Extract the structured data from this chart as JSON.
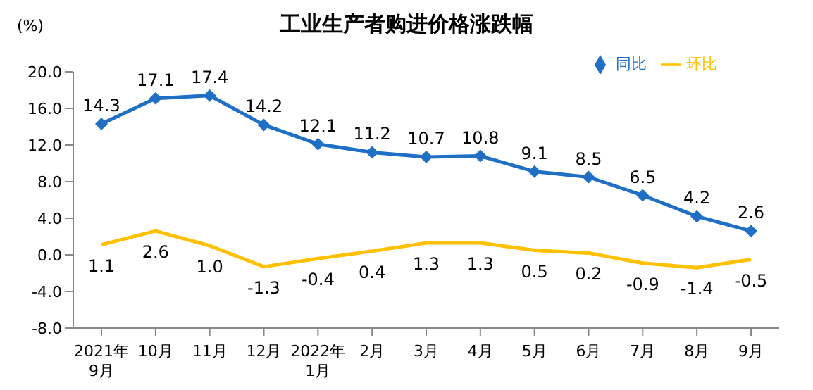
{
  "chart_data": {
    "type": "line",
    "title": "工业生产者购进价格涨跌幅",
    "ylabel": "(%)",
    "categories": [
      "2021年\n9月",
      "10月",
      "11月",
      "12月",
      "2022年\n1月",
      "2月",
      "3月",
      "4月",
      "5月",
      "6月",
      "7月",
      "8月",
      "9月"
    ],
    "series": [
      {
        "name": "同比",
        "color": "#1f6fc5",
        "marker": "diamond",
        "values": [
          14.3,
          17.1,
          17.4,
          14.2,
          12.1,
          11.2,
          10.7,
          10.8,
          9.1,
          8.5,
          6.5,
          4.2,
          2.6
        ],
        "value_labels": [
          "14.3",
          "17.1",
          "17.4",
          "14.2",
          "12.1",
          "11.2",
          "10.7",
          "10.8",
          "9.1",
          "8.5",
          "6.5",
          "4.2",
          "2.6"
        ]
      },
      {
        "name": "环比",
        "color": "#ffc000",
        "marker": "none",
        "values": [
          1.1,
          2.6,
          1.0,
          -1.3,
          -0.4,
          0.4,
          1.3,
          1.3,
          0.5,
          0.2,
          -0.9,
          -1.4,
          -0.5
        ],
        "value_labels": [
          "1.1",
          "2.6",
          "1.0",
          "-1.3",
          "-0.4",
          "0.4",
          "1.3",
          "1.3",
          "0.5",
          "0.2",
          "-0.9",
          "-1.4",
          "-0.5"
        ]
      }
    ],
    "ylim": [
      -8,
      20
    ],
    "yticks": [
      {
        "value": -8,
        "label": "-8.0"
      },
      {
        "value": -4,
        "label": "-4.0"
      },
      {
        "value": 0,
        "label": "0.0"
      },
      {
        "value": 4,
        "label": "4.0"
      },
      {
        "value": 8,
        "label": "8.0"
      },
      {
        "value": 12,
        "label": "12.0"
      },
      {
        "value": 16,
        "label": "16.0"
      },
      {
        "value": 20,
        "label": "20.0"
      }
    ],
    "legend": "top right",
    "line_style": "solid",
    "grid": false
  }
}
